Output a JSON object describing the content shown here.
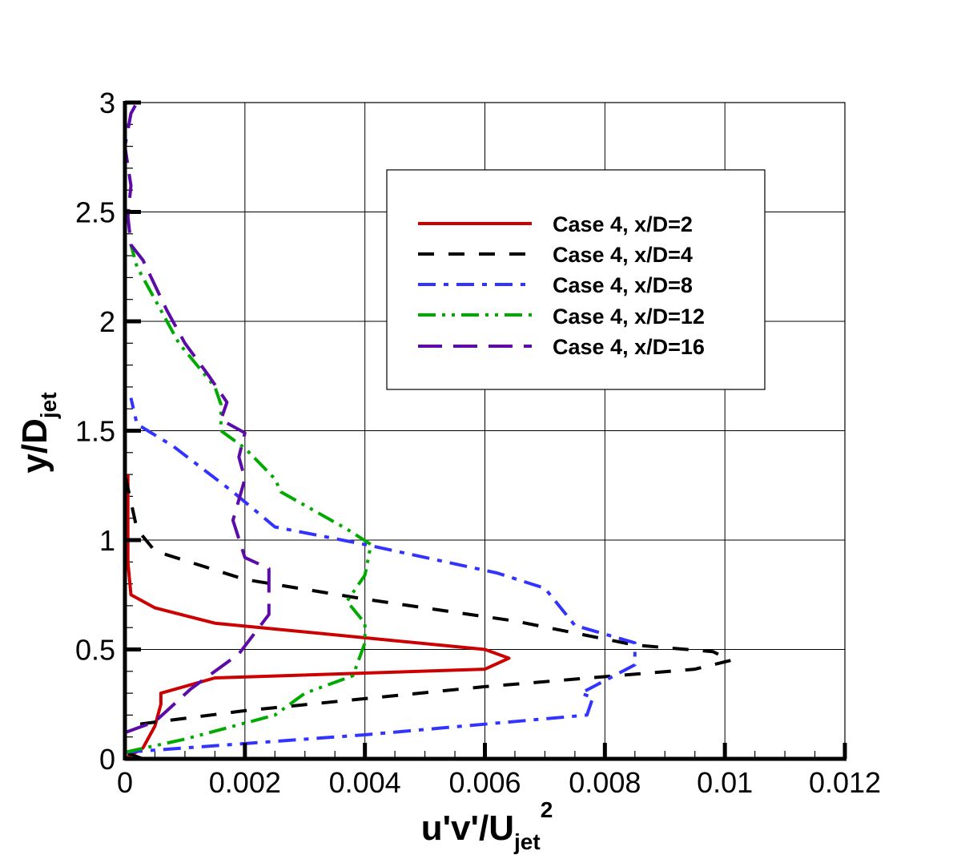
{
  "chart_data": {
    "type": "line",
    "title": "",
    "xlabel": "u'v'/U_jet^2",
    "xlabel_parts": {
      "main": "u'v'/U",
      "sub": "jet",
      "sup": "2"
    },
    "ylabel": "y/D_jet",
    "ylabel_parts": {
      "main": "y/D",
      "sub": "jet"
    },
    "xlim": [
      0,
      0.012
    ],
    "ylim": [
      0,
      3
    ],
    "xticks": [
      0,
      0.002,
      0.004,
      0.006,
      0.008,
      0.01,
      0.012
    ],
    "xtick_labels": [
      "0",
      "0.002",
      "0.004",
      "0.006",
      "0.008",
      "0.01",
      "0.012"
    ],
    "yticks": [
      0,
      0.5,
      1,
      1.5,
      2,
      2.5,
      3
    ],
    "ytick_labels": [
      "0",
      "0.5",
      "1",
      "1.5",
      "2",
      "2.5",
      "3"
    ],
    "grid": true,
    "legend_position": "upper right (inside)",
    "series": [
      {
        "name": "Case 4, x/D=2",
        "color": "#cc0000",
        "dash": "solid",
        "points": [
          [
            0.0,
            0.0
          ],
          [
            0.0003,
            0.05
          ],
          [
            0.0005,
            0.15
          ],
          [
            0.0006,
            0.25
          ],
          [
            0.0006,
            0.3
          ],
          [
            0.0015,
            0.37
          ],
          [
            0.006,
            0.41
          ],
          [
            0.0064,
            0.46
          ],
          [
            0.006,
            0.5
          ],
          [
            0.0015,
            0.62
          ],
          [
            0.0005,
            0.69
          ],
          [
            0.0001,
            0.75
          ],
          [
            5e-05,
            0.9
          ],
          [
            5e-05,
            1.3
          ]
        ]
      },
      {
        "name": "Case 4, x/D=4",
        "color": "#000000",
        "dash": "dashed",
        "points": [
          [
            0.0003,
            0.0
          ],
          [
            0.0,
            0.03
          ],
          [
            0.0,
            0.15
          ],
          [
            0.002,
            0.22
          ],
          [
            0.006,
            0.33
          ],
          [
            0.0095,
            0.41
          ],
          [
            0.0101,
            0.45
          ],
          [
            0.0098,
            0.49
          ],
          [
            0.0085,
            0.52
          ],
          [
            0.0065,
            0.63
          ],
          [
            0.004,
            0.73
          ],
          [
            0.002,
            0.82
          ],
          [
            0.0005,
            0.95
          ],
          [
            0.0002,
            1.05
          ],
          [
            0.0,
            1.3
          ],
          [
            0.0,
            3.0
          ]
        ]
      },
      {
        "name": "Case 4, x/D=8",
        "color": "#3333ff",
        "dash": "dash-dot",
        "points": [
          [
            0.0,
            0.03
          ],
          [
            0.001,
            0.05
          ],
          [
            0.004,
            0.11
          ],
          [
            0.0077,
            0.2
          ],
          [
            0.0078,
            0.28
          ],
          [
            0.0076,
            0.3
          ],
          [
            0.0085,
            0.43
          ],
          [
            0.0085,
            0.53
          ],
          [
            0.0075,
            0.61
          ],
          [
            0.007,
            0.78
          ],
          [
            0.0062,
            0.85
          ],
          [
            0.004,
            0.98
          ],
          [
            0.0025,
            1.06
          ],
          [
            0.0018,
            1.22
          ],
          [
            0.0008,
            1.43
          ],
          [
            0.0002,
            1.53
          ],
          [
            0.0001,
            1.65
          ]
        ]
      },
      {
        "name": "Case 4, x/D=12",
        "color": "#00aa00",
        "dash": "dash-dot-dot",
        "points": [
          [
            0.0,
            0.03
          ],
          [
            0.001,
            0.09
          ],
          [
            0.0025,
            0.2
          ],
          [
            0.003,
            0.3
          ],
          [
            0.0038,
            0.38
          ],
          [
            0.004,
            0.53
          ],
          [
            0.004,
            0.62
          ],
          [
            0.0037,
            0.72
          ],
          [
            0.004,
            0.84
          ],
          [
            0.0041,
            0.98
          ],
          [
            0.0037,
            1.05
          ],
          [
            0.0026,
            1.22
          ],
          [
            0.0025,
            1.28
          ],
          [
            0.002,
            1.42
          ],
          [
            0.0016,
            1.5
          ],
          [
            0.0016,
            1.62
          ],
          [
            0.0015,
            1.7
          ],
          [
            0.0009,
            1.9
          ],
          [
            0.0005,
            2.1
          ],
          [
            0.0002,
            2.25
          ],
          [
            0.0001,
            2.35
          ]
        ]
      },
      {
        "name": "Case 4, x/D=16",
        "color": "#5c0aa8",
        "dash": "long-dash",
        "points": [
          [
            0.0,
            0.12
          ],
          [
            0.0005,
            0.17
          ],
          [
            0.0011,
            0.32
          ],
          [
            0.0019,
            0.48
          ],
          [
            0.0024,
            0.66
          ],
          [
            0.0024,
            0.87
          ],
          [
            0.002,
            0.92
          ],
          [
            0.0018,
            1.09
          ],
          [
            0.002,
            1.28
          ],
          [
            0.0019,
            1.38
          ],
          [
            0.002,
            1.49
          ],
          [
            0.0016,
            1.55
          ],
          [
            0.0017,
            1.63
          ],
          [
            0.0014,
            1.75
          ],
          [
            0.001,
            1.9
          ],
          [
            0.0007,
            2.05
          ],
          [
            0.0003,
            2.28
          ],
          [
            0.0001,
            2.35
          ],
          [
            5e-05,
            2.48
          ],
          [
            0.0001,
            2.62
          ],
          [
            0.0,
            2.8
          ],
          [
            0.0001,
            2.95
          ],
          [
            0.0002,
            3.0
          ]
        ]
      }
    ]
  },
  "legend": {
    "entries": [
      {
        "label": "Case 4, x/D=2"
      },
      {
        "label": "Case 4, x/D=4"
      },
      {
        "label": "Case 4, x/D=8"
      },
      {
        "label": "Case 4, x/D=12"
      },
      {
        "label": "Case 4, x/D=16"
      }
    ]
  }
}
